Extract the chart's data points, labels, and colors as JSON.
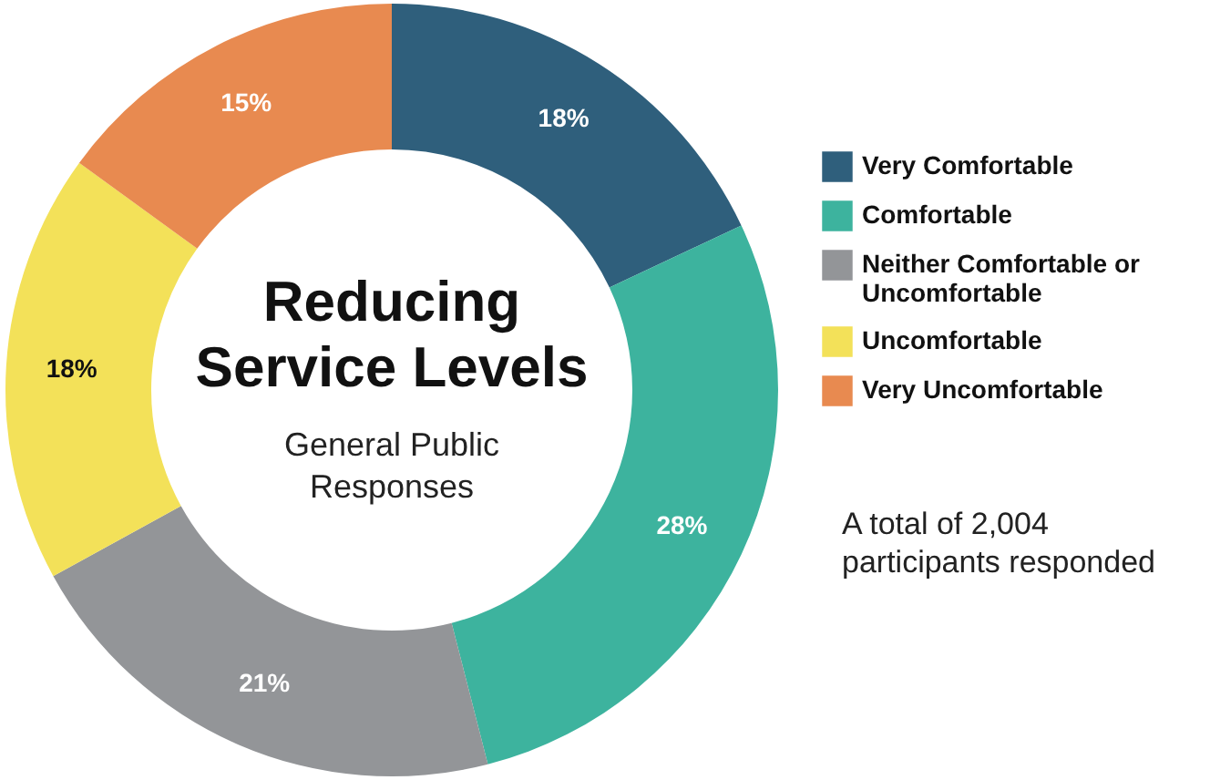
{
  "chart_data": {
    "type": "donut",
    "title": "Reducing Service Levels",
    "subtitle": "General Public Responses",
    "categories": [
      "Very Comfortable",
      "Comfortable",
      "Neither Comfortable or Uncomfortable",
      "Uncomfortable",
      "Very Uncomfortable"
    ],
    "values": [
      18,
      28,
      21,
      18,
      15
    ],
    "colors": [
      "#2f5f7c",
      "#3db39e",
      "#939598",
      "#f3e159",
      "#e88a50"
    ],
    "value_labels": [
      "18%",
      "28%",
      "21%",
      "18%",
      "15%"
    ],
    "legend": "right",
    "annotations": [
      "A total of 2,004 participants responded"
    ]
  }
}
